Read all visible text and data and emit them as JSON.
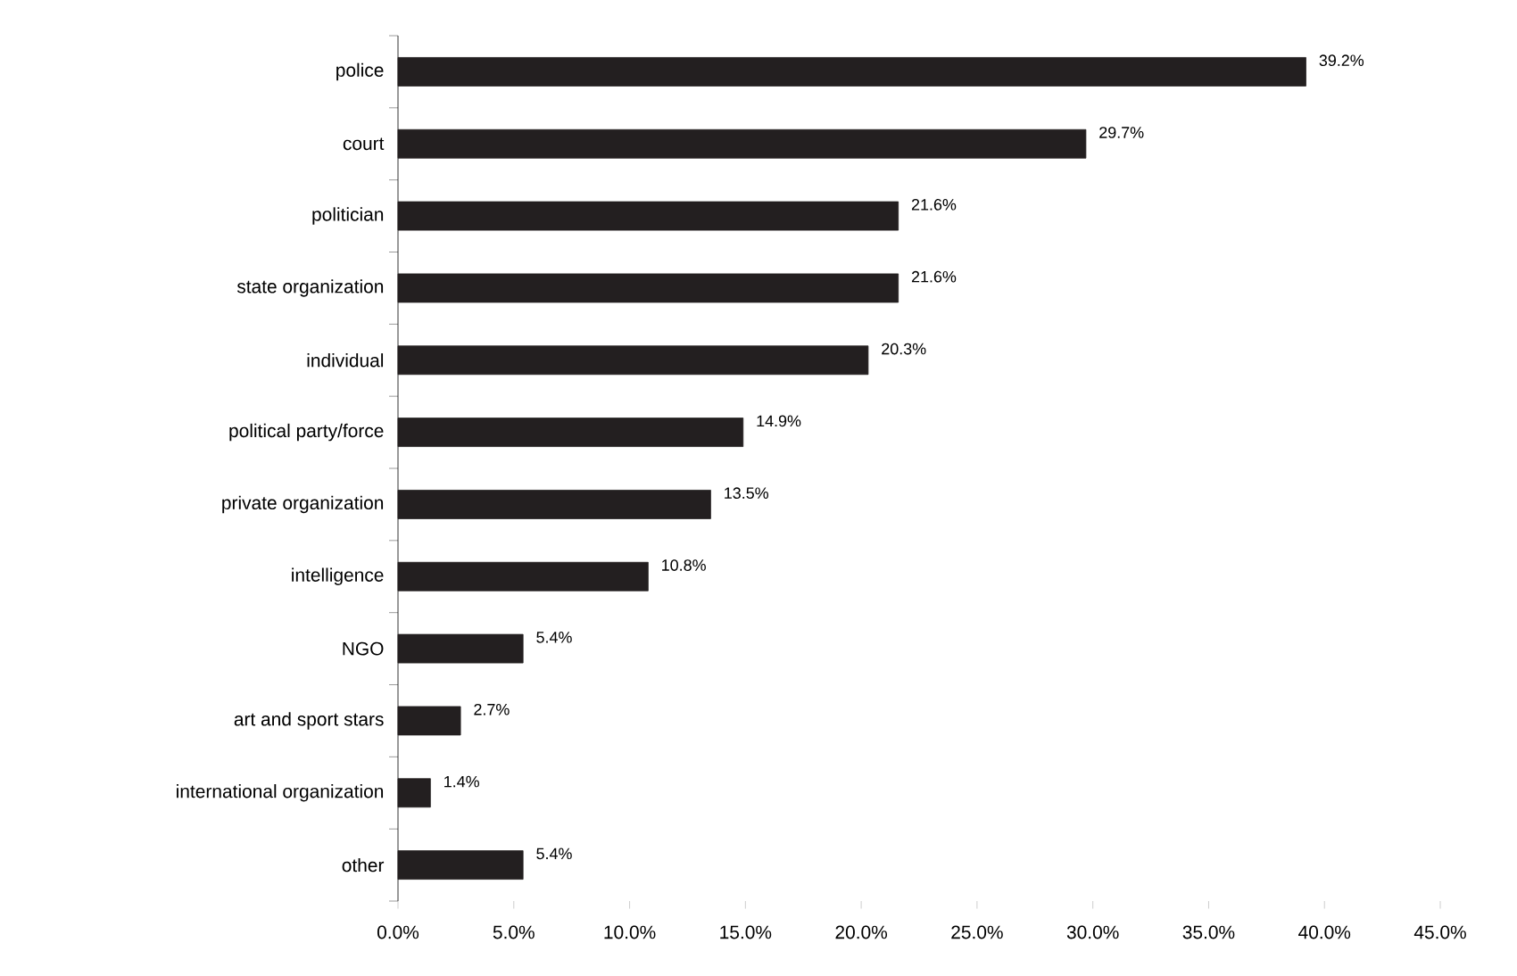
{
  "chart_data": {
    "type": "bar",
    "orientation": "horizontal",
    "color": "#231f20",
    "categories": [
      "police",
      "court",
      "politician",
      "state organization",
      "individual",
      "political party/force",
      "private organization",
      "intelligence",
      "NGO",
      "art and sport stars",
      "international organization",
      "other"
    ],
    "values": [
      39.2,
      29.7,
      21.6,
      21.6,
      20.3,
      14.9,
      13.5,
      10.8,
      5.4,
      2.7,
      1.4,
      5.4
    ],
    "value_labels": [
      "39.2%",
      "29.7%",
      "21.6%",
      "21.6%",
      "20.3%",
      "14.9%",
      "13.5%",
      "10.8%",
      "5.4%",
      "2.7%",
      "1.4%",
      "5.4%"
    ],
    "xlim": [
      0,
      45
    ],
    "xticks": [
      {
        "value": 0,
        "label": "0.0%"
      },
      {
        "value": 5,
        "label": "5.0%"
      },
      {
        "value": 10,
        "label": "10.0%"
      },
      {
        "value": 15,
        "label": "15.0%"
      },
      {
        "value": 20,
        "label": "20.0%"
      },
      {
        "value": 25,
        "label": "25.0%"
      },
      {
        "value": 30,
        "label": "30.0%"
      },
      {
        "value": 35,
        "label": "35.0%"
      },
      {
        "value": 40,
        "label": "40.0%"
      },
      {
        "value": 45,
        "label": "45.0%"
      }
    ],
    "grid": false
  }
}
